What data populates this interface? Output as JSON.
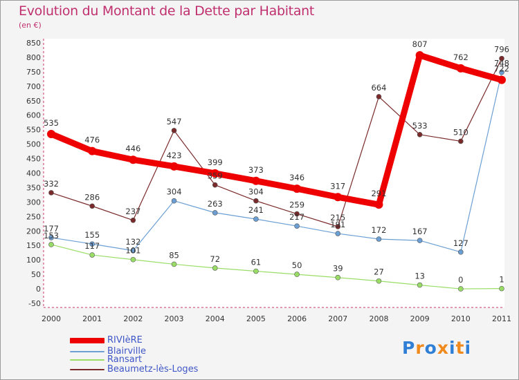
{
  "header": {
    "title": "Evolution du Montant de la Dette par Habitant",
    "subtitle": "(en €)"
  },
  "legend": {
    "items": [
      {
        "label": "RIVIèRE",
        "color": "#ee0000"
      },
      {
        "label": "Blairville",
        "color": "#6b9fd4"
      },
      {
        "label": "Ransart",
        "color": "#99dd66"
      },
      {
        "label": "Beaumetz-lès-Loges",
        "color": "#7a2a2a"
      }
    ]
  },
  "brand": {
    "text": "Proxiti",
    "letters": [
      {
        "ch": "P",
        "color": "#2f7fd6"
      },
      {
        "ch": "r",
        "color": "#f08a1c"
      },
      {
        "ch": "o",
        "color": "#2f7fd6"
      },
      {
        "ch": "x",
        "color": "#f08a1c"
      },
      {
        "ch": "i",
        "color": "#2f7fd6"
      },
      {
        "ch": "t",
        "color": "#f08a1c"
      },
      {
        "ch": "i",
        "color": "#2f7fd6"
      }
    ]
  },
  "chart_data": {
    "type": "line",
    "title": "Evolution du Montant de la Dette par Habitant",
    "subtitle": "(en €)",
    "xlabel": "",
    "ylabel": "",
    "x": [
      "2000",
      "2001",
      "2002",
      "2003",
      "2004",
      "2005",
      "2006",
      "2007",
      "2008",
      "2009",
      "2010",
      "2011"
    ],
    "ylim": [
      -50,
      850
    ],
    "yticks": [
      -50,
      0,
      50,
      100,
      150,
      200,
      250,
      300,
      350,
      400,
      450,
      500,
      550,
      600,
      650,
      700,
      750,
      800,
      850
    ],
    "grid": false,
    "legend_position": "bottom-left",
    "series": [
      {
        "name": "RIVIèRE",
        "color": "#ee0000",
        "values": [
          535,
          476,
          446,
          423,
          399,
          373,
          346,
          317,
          291,
          807,
          762,
          722
        ],
        "labels": [
          "535",
          "476",
          "446",
          "423",
          "399",
          "373",
          "346",
          "317",
          "291",
          "807",
          "762",
          "722"
        ]
      },
      {
        "name": "Blairville",
        "color": "#6b9fd4",
        "values": [
          177,
          155,
          132,
          304,
          263,
          241,
          217,
          191,
          172,
          167,
          127,
          748
        ],
        "labels": [
          "177",
          "155",
          "132",
          "304",
          "263",
          "241",
          "217",
          "191",
          "172",
          "167",
          "127",
          "748"
        ]
      },
      {
        "name": "Ransart",
        "color": "#99dd66",
        "values": [
          153,
          117,
          101,
          85,
          72,
          61,
          50,
          39,
          27,
          13,
          0,
          1
        ],
        "labels": [
          "153",
          "117",
          "101",
          "85",
          "72",
          "61",
          "50",
          "39",
          "27",
          "13",
          "0",
          "1"
        ]
      },
      {
        "name": "Beaumetz-lès-Loges",
        "color": "#7a2a2a",
        "values": [
          332,
          286,
          237,
          547,
          359,
          304,
          259,
          215,
          664,
          533,
          510,
          796
        ],
        "labels": [
          "332",
          "286",
          "237",
          "547",
          "359",
          "304",
          "259",
          "215",
          "664",
          "533",
          "510",
          "796"
        ]
      }
    ]
  }
}
